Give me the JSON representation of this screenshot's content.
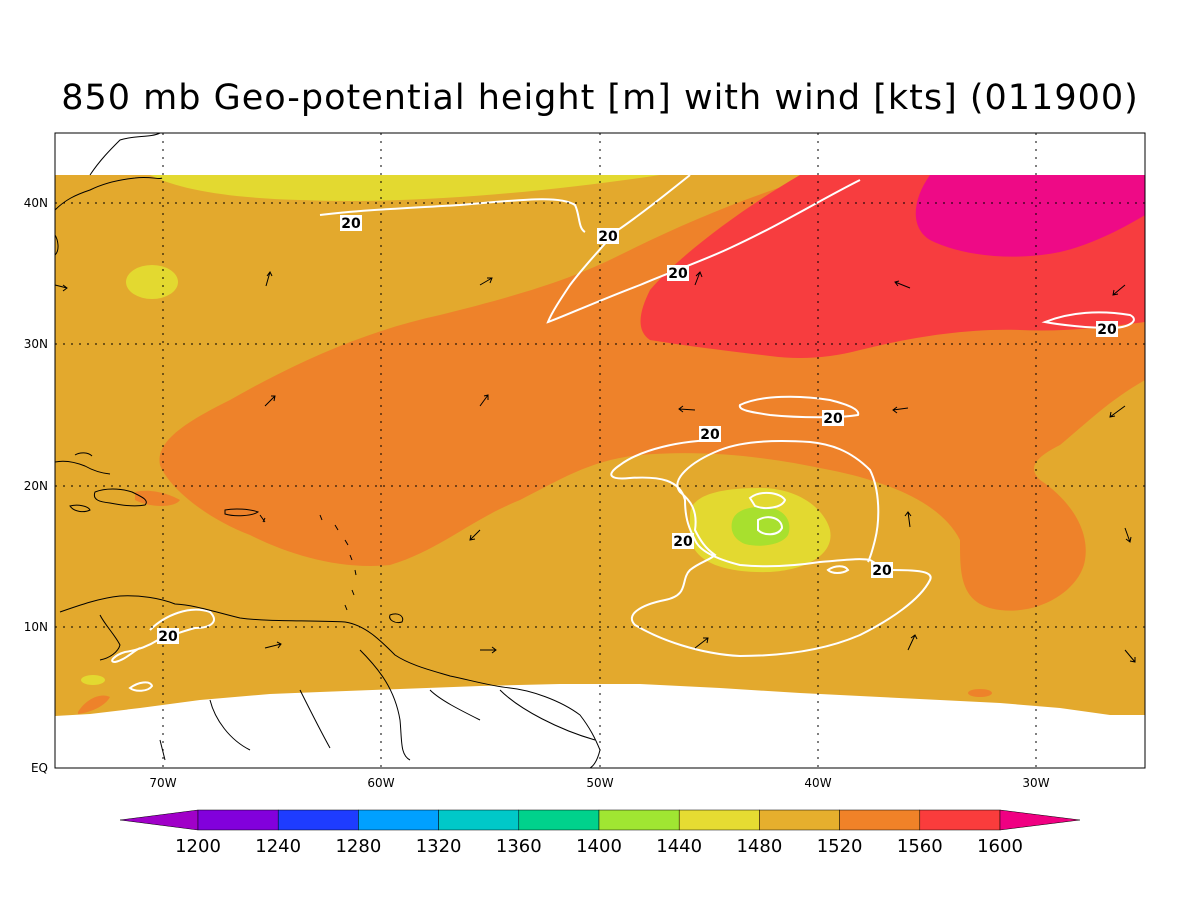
{
  "title": "850 mb Geo-potential height [m] with wind [kts] (011900)",
  "colors": {
    "ocean_base": "#e3a92d",
    "c1440": "#a8e02e",
    "c1480": "#e3d930",
    "c1520": "#e3a92d",
    "c1560": "#ee822a",
    "c1600": "#f73d3f",
    "c1640": "#ee0a86",
    "contour": "#ffffff",
    "coast": "#000000"
  },
  "axes": {
    "x_ticks": [
      "70W",
      "60W",
      "50W",
      "40W",
      "30W"
    ],
    "y_ticks": [
      "EQ",
      "10N",
      "20N",
      "30N",
      "40N"
    ]
  },
  "contour_labels": [
    "20",
    "20",
    "20",
    "20",
    "20",
    "20",
    "20",
    "20"
  ],
  "colorbar": {
    "labels": [
      "1200",
      "1240",
      "1280",
      "1320",
      "1360",
      "1400",
      "1440",
      "1480",
      "1520",
      "1560",
      "1600"
    ],
    "colors": [
      "#a000c8",
      "#8200dc",
      "#1e3cff",
      "#00a0ff",
      "#00c8c8",
      "#00d28c",
      "#a0e632",
      "#e6dc32",
      "#e6af2d",
      "#f08228",
      "#fa3c3c",
      "#f00082"
    ]
  }
}
